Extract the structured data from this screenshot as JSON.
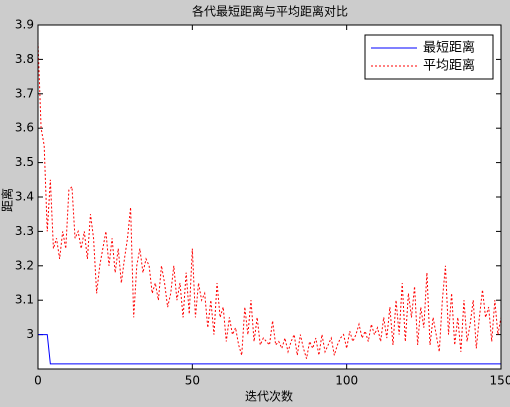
{
  "chart_data": {
    "type": "line",
    "title": "各代最短距离与平均距离对比",
    "x_label": "迭代次数",
    "y_label": "距离",
    "x": [
      0,
      1,
      2,
      3,
      4,
      5,
      6,
      7,
      8,
      9,
      10,
      11,
      12,
      13,
      14,
      15,
      16,
      17,
      18,
      19,
      20,
      21,
      22,
      23,
      24,
      25,
      26,
      27,
      28,
      29,
      30,
      31,
      32,
      33,
      34,
      35,
      36,
      37,
      38,
      39,
      40,
      41,
      42,
      43,
      44,
      45,
      46,
      47,
      48,
      49,
      50,
      51,
      52,
      53,
      54,
      55,
      56,
      57,
      58,
      59,
      60,
      61,
      62,
      63,
      64,
      65,
      66,
      67,
      68,
      69,
      70,
      71,
      72,
      73,
      74,
      75,
      76,
      77,
      78,
      79,
      80,
      81,
      82,
      83,
      84,
      85,
      86,
      87,
      88,
      89,
      90,
      91,
      92,
      93,
      94,
      95,
      96,
      97,
      98,
      99,
      100,
      101,
      102,
      103,
      104,
      105,
      106,
      107,
      108,
      109,
      110,
      111,
      112,
      113,
      114,
      115,
      116,
      117,
      118,
      119,
      120,
      121,
      122,
      123,
      124,
      125,
      126,
      127,
      128,
      129,
      130,
      131,
      132,
      133,
      134,
      135,
      136,
      137,
      138,
      139,
      140,
      141,
      142,
      143,
      144,
      145,
      146,
      147,
      148,
      149,
      150
    ],
    "series": [
      {
        "name": "最短距离",
        "color": "#0000ff",
        "dash": false,
        "values": [
          3.0,
          3.0,
          3.0,
          3.0,
          2.915,
          2.915,
          2.915,
          2.915,
          2.915,
          2.915,
          2.915,
          2.915,
          2.915,
          2.915,
          2.915,
          2.915,
          2.915,
          2.915,
          2.915,
          2.915,
          2.915,
          2.915,
          2.915,
          2.915,
          2.915,
          2.915,
          2.915,
          2.915,
          2.915,
          2.915,
          2.915,
          2.915,
          2.915,
          2.915,
          2.915,
          2.915,
          2.915,
          2.915,
          2.915,
          2.915,
          2.915,
          2.915,
          2.915,
          2.915,
          2.915,
          2.915,
          2.915,
          2.915,
          2.915,
          2.915,
          2.915,
          2.915,
          2.915,
          2.915,
          2.915,
          2.915,
          2.915,
          2.915,
          2.915,
          2.915,
          2.915,
          2.915,
          2.915,
          2.915,
          2.915,
          2.915,
          2.915,
          2.915,
          2.915,
          2.915,
          2.915,
          2.915,
          2.915,
          2.915,
          2.915,
          2.915,
          2.915,
          2.915,
          2.915,
          2.915,
          2.915,
          2.915,
          2.915,
          2.915,
          2.915,
          2.915,
          2.915,
          2.915,
          2.915,
          2.915,
          2.915,
          2.915,
          2.915,
          2.915,
          2.915,
          2.915,
          2.915,
          2.915,
          2.915,
          2.915,
          2.915,
          2.915,
          2.915,
          2.915,
          2.915,
          2.915,
          2.915,
          2.915,
          2.915,
          2.915,
          2.915,
          2.915,
          2.915,
          2.915,
          2.915,
          2.915,
          2.915,
          2.915,
          2.915,
          2.915,
          2.915,
          2.915,
          2.915,
          2.915,
          2.915,
          2.915,
          2.915,
          2.915,
          2.915,
          2.915,
          2.915,
          2.915,
          2.915,
          2.915,
          2.915,
          2.915,
          2.915,
          2.915,
          2.915,
          2.915,
          2.915,
          2.915,
          2.915,
          2.915,
          2.915,
          2.915,
          2.915,
          2.915,
          2.915,
          2.915,
          2.915
        ]
      },
      {
        "name": "平均距离",
        "color": "#ff0000",
        "dash": true,
        "values": [
          3.85,
          3.6,
          3.55,
          3.3,
          3.45,
          3.25,
          3.28,
          3.22,
          3.3,
          3.25,
          3.42,
          3.43,
          3.28,
          3.3,
          3.25,
          3.3,
          3.22,
          3.35,
          3.28,
          3.12,
          3.2,
          3.25,
          3.3,
          3.2,
          3.28,
          3.18,
          3.25,
          3.15,
          3.22,
          3.28,
          3.37,
          3.05,
          3.2,
          3.25,
          3.18,
          3.22,
          3.2,
          3.12,
          3.15,
          3.1,
          3.2,
          3.15,
          3.08,
          3.12,
          3.2,
          3.1,
          3.15,
          3.05,
          3.18,
          3.06,
          3.25,
          3.05,
          3.15,
          3.1,
          3.12,
          3.02,
          3.1,
          3.0,
          3.15,
          3.05,
          3.08,
          2.98,
          3.05,
          3.0,
          3.02,
          2.97,
          2.94,
          3.08,
          3.0,
          3.1,
          2.98,
          3.05,
          2.97,
          2.99,
          2.98,
          2.97,
          3.04,
          2.97,
          2.98,
          2.96,
          2.99,
          2.95,
          2.98,
          3.0,
          2.94,
          3.0,
          2.96,
          2.93,
          2.98,
          2.96,
          2.99,
          2.94,
          3.0,
          2.95,
          2.97,
          2.99,
          2.94,
          2.97,
          2.99,
          3.0,
          2.96,
          3.01,
          2.98,
          3.0,
          3.03,
          2.99,
          3.01,
          2.98,
          3.03,
          3.0,
          3.02,
          2.98,
          3.05,
          2.99,
          3.08,
          2.97,
          3.1,
          3.0,
          3.15,
          2.98,
          3.12,
          3.05,
          3.14,
          2.97,
          3.08,
          3.02,
          3.18,
          2.97,
          3.05,
          3.0,
          2.95,
          3.1,
          3.2,
          3.0,
          3.12,
          2.97,
          3.05,
          2.95,
          3.1,
          2.98,
          3.03,
          3.1,
          2.96,
          3.05,
          3.13,
          3.05,
          3.08,
          2.98,
          3.1,
          3.0,
          3.05
        ]
      }
    ],
    "xlim": [
      0,
      150
    ],
    "xticks": [
      0,
      50,
      100,
      150
    ],
    "ylim": [
      2.9,
      3.9
    ],
    "yticks": [
      3,
      3.1,
      3.2,
      3.3,
      3.4,
      3.5,
      3.6,
      3.7,
      3.8,
      3.9
    ],
    "legend": "upper right"
  }
}
